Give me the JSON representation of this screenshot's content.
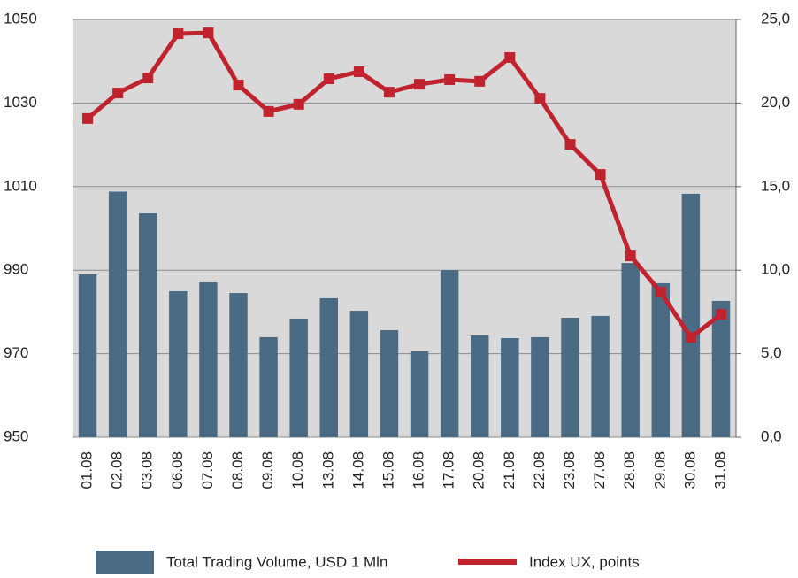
{
  "chart_data": {
    "type": "bar_line",
    "categories": [
      "01.08",
      "02.08",
      "03.08",
      "06.08",
      "07.08",
      "08.08",
      "09.08",
      "10.08",
      "13.08",
      "14.08",
      "15.08",
      "16.08",
      "17.08",
      "20.08",
      "21.08",
      "22.08",
      "23.08",
      "27.08",
      "28.08",
      "29.08",
      "30.08",
      "31.08"
    ],
    "series": [
      {
        "name": "Total Trading Volume, USD 1 Mln",
        "type": "bar",
        "axis": "y2",
        "color": "#4b6a84",
        "values": [
          9.75,
          14.7,
          13.4,
          8.74,
          9.27,
          8.63,
          5.99,
          7.1,
          8.32,
          7.57,
          6.41,
          5.14,
          10.0,
          6.09,
          5.93,
          5.99,
          7.15,
          7.26,
          10.43,
          9.22,
          14.57,
          8.16
        ]
      },
      {
        "name": "Index UX, points",
        "type": "line",
        "axis": "y",
        "color": "#c1232e",
        "values": [
          1026.3,
          1032.4,
          1036.0,
          1046.6,
          1046.8,
          1034.3,
          1028.0,
          1029.7,
          1035.8,
          1037.5,
          1032.6,
          1034.5,
          1035.6,
          1035.2,
          1040.9,
          1031.1,
          1020.1,
          1012.9,
          993.4,
          984.7,
          973.9,
          979.4
        ]
      }
    ],
    "ylim": [
      950,
      1050
    ],
    "yticks": [
      950,
      970,
      990,
      1010,
      1030,
      1050
    ],
    "y2lim": [
      0,
      25
    ],
    "y2ticks": [
      {
        "value": 0,
        "label": "0,0"
      },
      {
        "value": 5,
        "label": "5,0"
      },
      {
        "value": 10,
        "label": "10,0"
      },
      {
        "value": 15,
        "label": "15,0"
      },
      {
        "value": 20,
        "label": "20,0"
      },
      {
        "value": 25,
        "label": "25,0"
      }
    ],
    "grid": true,
    "legend": "bottom"
  }
}
